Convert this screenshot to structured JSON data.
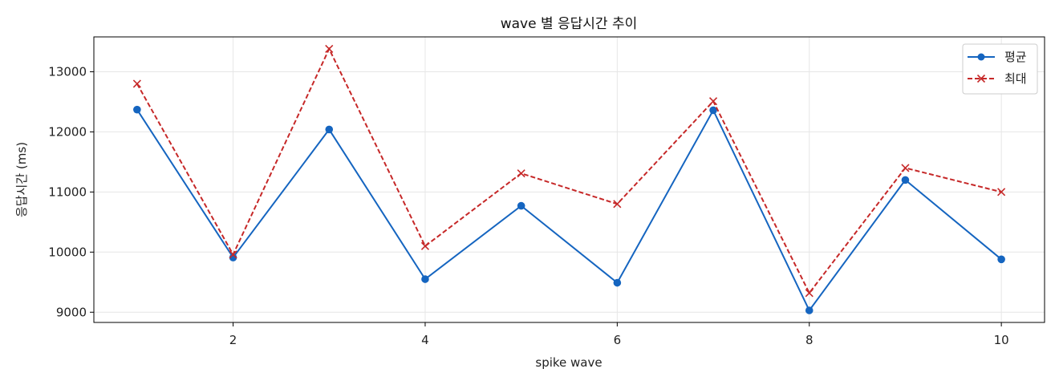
{
  "chart_data": {
    "type": "line",
    "title": "wave 별 응답시간 추이",
    "xlabel": "spike wave",
    "ylabel": "응답시간 (ms)",
    "x": [
      1,
      2,
      3,
      4,
      5,
      6,
      7,
      8,
      9,
      10
    ],
    "xlim": [
      0.55,
      10.45
    ],
    "ylim": [
      8830,
      13580
    ],
    "x_ticks": [
      2,
      4,
      6,
      8,
      10
    ],
    "y_ticks": [
      9000,
      10000,
      11000,
      12000,
      13000
    ],
    "grid": true,
    "legend_position": "top-right",
    "series": [
      {
        "name": "평균",
        "values": [
          12370,
          9910,
          12040,
          9550,
          10770,
          9490,
          12360,
          9030,
          11200,
          9880
        ],
        "color": "#1565c0",
        "line_style": "solid",
        "marker": "circle"
      },
      {
        "name": "최대",
        "values": [
          12800,
          9960,
          13380,
          10100,
          11310,
          10800,
          12510,
          9320,
          11400,
          11000
        ],
        "color": "#c62828",
        "line_style": "dashed",
        "marker": "x"
      }
    ]
  }
}
